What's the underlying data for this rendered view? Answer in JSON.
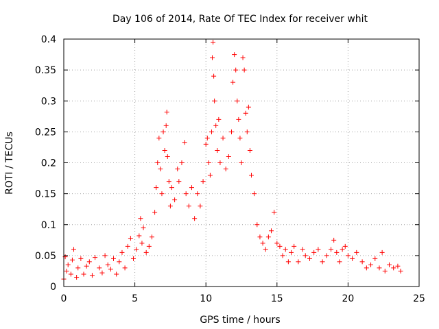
{
  "chart_data": {
    "type": "scatter",
    "title": "Day 106 of 2014, Rate Of TEC Index for receiver whit",
    "xlabel": "GPS time / hours",
    "ylabel": "ROTI / TECUs",
    "xlim": [
      0,
      25
    ],
    "ylim": [
      0,
      0.4
    ],
    "xticks": [
      0,
      5,
      10,
      15,
      20,
      25
    ],
    "xtick_labels": [
      "0",
      "5",
      "10",
      "15",
      "20",
      "25"
    ],
    "yticks": [
      0,
      0.05,
      0.1,
      0.15,
      0.2,
      0.25,
      0.3,
      0.35,
      0.4
    ],
    "ytick_labels": [
      "0",
      "0.05",
      "0.1",
      "0.15",
      "0.2",
      "0.25",
      "0.3",
      "0.35",
      "0.4"
    ],
    "grid": true,
    "marker": "+",
    "color": "#ff0000",
    "series": [
      {
        "points": [
          [
            0.0,
            0.012
          ],
          [
            0.1,
            0.048
          ],
          [
            0.2,
            0.025
          ],
          [
            0.3,
            0.035
          ],
          [
            0.5,
            0.02
          ],
          [
            0.6,
            0.043
          ],
          [
            0.7,
            0.06
          ],
          [
            0.9,
            0.015
          ],
          [
            1.0,
            0.03
          ],
          [
            1.2,
            0.045
          ],
          [
            1.4,
            0.02
          ],
          [
            1.6,
            0.033
          ],
          [
            1.8,
            0.04
          ],
          [
            2.0,
            0.018
          ],
          [
            2.2,
            0.047
          ],
          [
            2.5,
            0.03
          ],
          [
            2.7,
            0.022
          ],
          [
            2.9,
            0.05
          ],
          [
            3.1,
            0.035
          ],
          [
            3.3,
            0.028
          ],
          [
            3.5,
            0.045
          ],
          [
            3.7,
            0.02
          ],
          [
            3.9,
            0.04
          ],
          [
            4.1,
            0.055
          ],
          [
            4.3,
            0.03
          ],
          [
            4.5,
            0.065
          ],
          [
            4.7,
            0.078
          ],
          [
            4.9,
            0.045
          ],
          [
            5.1,
            0.06
          ],
          [
            5.3,
            0.082
          ],
          [
            5.4,
            0.11
          ],
          [
            5.5,
            0.07
          ],
          [
            5.6,
            0.095
          ],
          [
            5.8,
            0.055
          ],
          [
            6.0,
            0.065
          ],
          [
            6.2,
            0.08
          ],
          [
            6.4,
            0.12
          ],
          [
            6.5,
            0.16
          ],
          [
            6.6,
            0.2
          ],
          [
            6.7,
            0.24
          ],
          [
            6.8,
            0.19
          ],
          [
            6.9,
            0.15
          ],
          [
            7.0,
            0.25
          ],
          [
            7.1,
            0.22
          ],
          [
            7.2,
            0.26
          ],
          [
            7.25,
            0.282
          ],
          [
            7.3,
            0.21
          ],
          [
            7.4,
            0.17
          ],
          [
            7.5,
            0.13
          ],
          [
            7.6,
            0.16
          ],
          [
            7.8,
            0.14
          ],
          [
            8.0,
            0.19
          ],
          [
            8.1,
            0.17
          ],
          [
            8.3,
            0.2
          ],
          [
            8.5,
            0.233
          ],
          [
            8.6,
            0.15
          ],
          [
            8.8,
            0.13
          ],
          [
            9.0,
            0.16
          ],
          [
            9.2,
            0.11
          ],
          [
            9.4,
            0.15
          ],
          [
            9.6,
            0.13
          ],
          [
            9.8,
            0.17
          ],
          [
            10.0,
            0.23
          ],
          [
            10.1,
            0.24
          ],
          [
            10.2,
            0.2
          ],
          [
            10.3,
            0.18
          ],
          [
            10.4,
            0.25
          ],
          [
            10.45,
            0.37
          ],
          [
            10.5,
            0.395
          ],
          [
            10.55,
            0.34
          ],
          [
            10.6,
            0.3
          ],
          [
            10.7,
            0.26
          ],
          [
            10.8,
            0.22
          ],
          [
            10.9,
            0.27
          ],
          [
            11.0,
            0.2
          ],
          [
            11.2,
            0.24
          ],
          [
            11.4,
            0.19
          ],
          [
            11.6,
            0.21
          ],
          [
            11.8,
            0.25
          ],
          [
            11.9,
            0.33
          ],
          [
            12.0,
            0.375
          ],
          [
            12.1,
            0.35
          ],
          [
            12.2,
            0.3
          ],
          [
            12.3,
            0.27
          ],
          [
            12.4,
            0.24
          ],
          [
            12.5,
            0.2
          ],
          [
            12.6,
            0.37
          ],
          [
            12.7,
            0.35
          ],
          [
            12.8,
            0.28
          ],
          [
            12.9,
            0.25
          ],
          [
            13.0,
            0.29
          ],
          [
            13.1,
            0.22
          ],
          [
            13.2,
            0.18
          ],
          [
            13.4,
            0.15
          ],
          [
            13.6,
            0.1
          ],
          [
            13.8,
            0.08
          ],
          [
            14.0,
            0.07
          ],
          [
            14.2,
            0.06
          ],
          [
            14.4,
            0.08
          ],
          [
            14.6,
            0.09
          ],
          [
            14.8,
            0.12
          ],
          [
            15.0,
            0.07
          ],
          [
            15.2,
            0.065
          ],
          [
            15.4,
            0.05
          ],
          [
            15.6,
            0.06
          ],
          [
            15.8,
            0.04
          ],
          [
            16.0,
            0.055
          ],
          [
            16.2,
            0.065
          ],
          [
            16.5,
            0.04
          ],
          [
            16.8,
            0.06
          ],
          [
            17.0,
            0.05
          ],
          [
            17.3,
            0.045
          ],
          [
            17.6,
            0.055
          ],
          [
            17.9,
            0.06
          ],
          [
            18.2,
            0.04
          ],
          [
            18.5,
            0.05
          ],
          [
            18.8,
            0.06
          ],
          [
            19.0,
            0.075
          ],
          [
            19.2,
            0.055
          ],
          [
            19.4,
            0.04
          ],
          [
            19.6,
            0.06
          ],
          [
            19.8,
            0.065
          ],
          [
            20.0,
            0.05
          ],
          [
            20.3,
            0.045
          ],
          [
            20.6,
            0.055
          ],
          [
            21.0,
            0.04
          ],
          [
            21.3,
            0.03
          ],
          [
            21.6,
            0.035
          ],
          [
            21.9,
            0.045
          ],
          [
            22.2,
            0.03
          ],
          [
            22.4,
            0.055
          ],
          [
            22.6,
            0.025
          ],
          [
            22.9,
            0.035
          ],
          [
            23.2,
            0.03
          ],
          [
            23.5,
            0.033
          ],
          [
            23.7,
            0.025
          ]
        ]
      }
    ]
  }
}
